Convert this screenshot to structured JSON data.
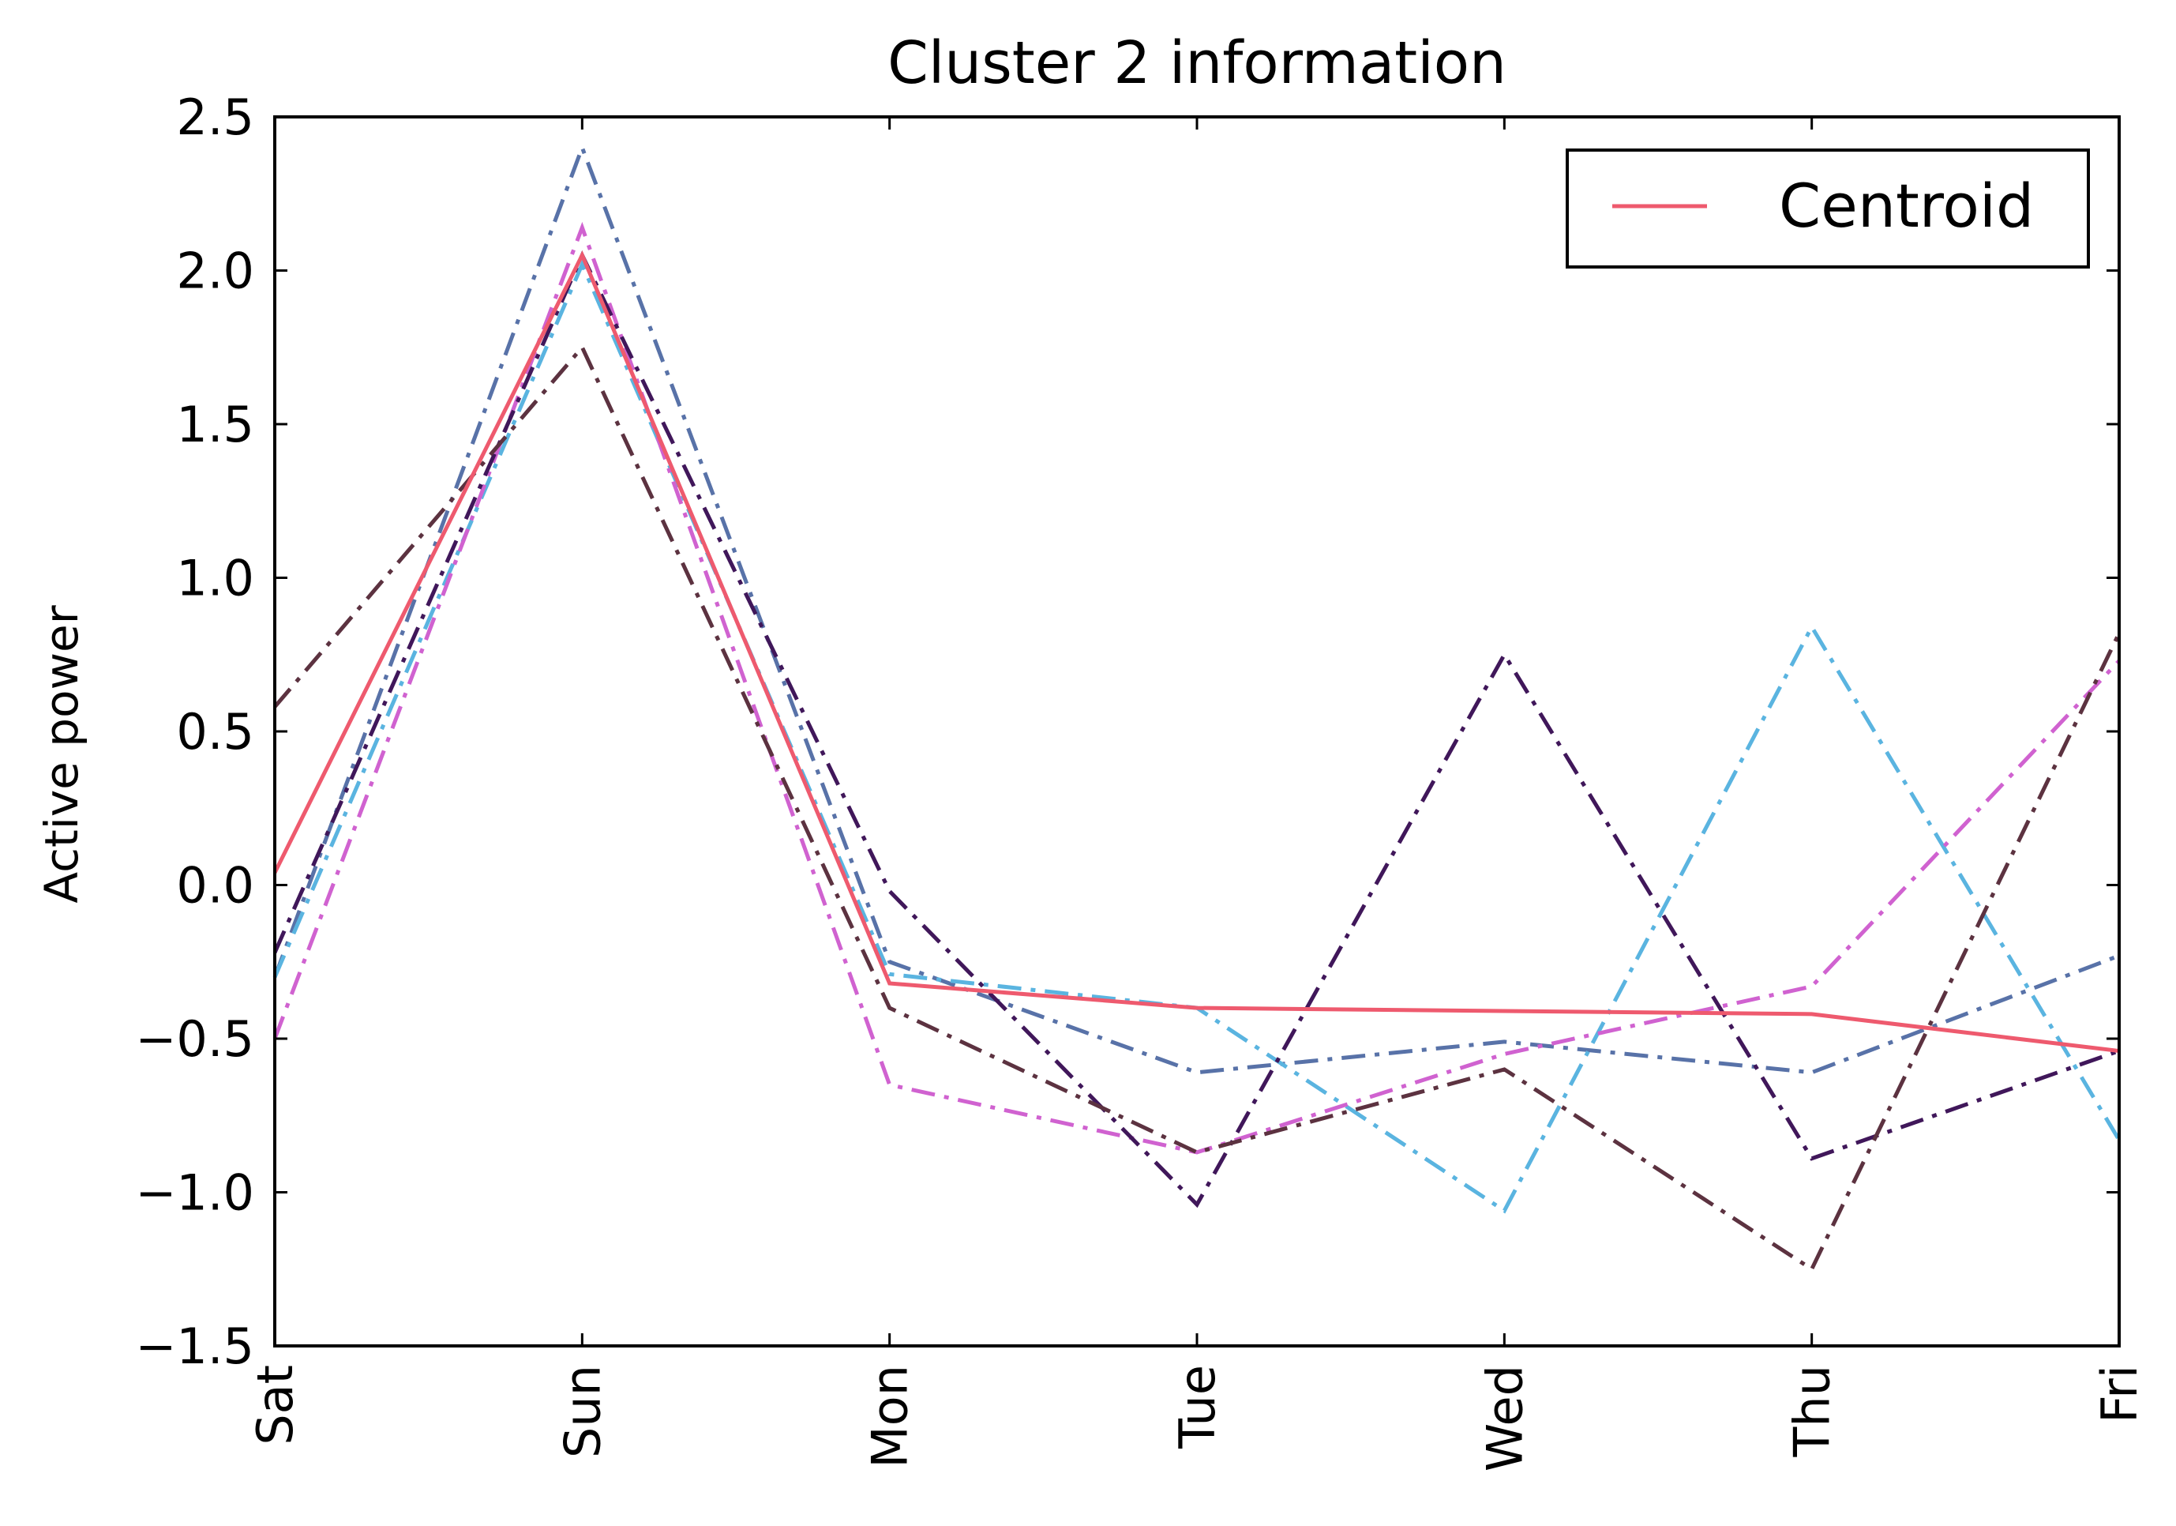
{
  "chart_data": {
    "type": "line",
    "title": "Cluster 2 information",
    "xlabel": "",
    "ylabel": "Active power",
    "categories": [
      "Sat",
      "Sun",
      "Mon",
      "Tue",
      "Wed",
      "Thu",
      "Fri"
    ],
    "ylim": [
      -1.5,
      2.5
    ],
    "yticks": [
      2.5,
      2.0,
      1.5,
      1.0,
      0.5,
      0.0,
      -0.5,
      -1.0,
      -1.5
    ],
    "ytick_labels": [
      "2.5",
      "2.0",
      "1.5",
      "1.0",
      "0.5",
      "0.0",
      "−0.5",
      "−1.0",
      "−1.5"
    ],
    "grid": false,
    "legend_position": "top-right",
    "series": [
      {
        "name": "Centroid",
        "values": [
          0.04,
          2.05,
          -0.32,
          -0.4,
          -0.41,
          -0.42,
          -0.54
        ],
        "color": "#ee5a6e",
        "style": "solid",
        "in_legend": true
      },
      {
        "values": [
          -0.3,
          2.4,
          -0.25,
          -0.61,
          -0.51,
          -0.61,
          -0.23
        ],
        "color": "#5872a8",
        "style": "dashdot",
        "in_legend": false
      },
      {
        "values": [
          -0.3,
          2.02,
          -0.29,
          -0.4,
          -1.06,
          0.84,
          -0.83
        ],
        "color": "#5ab4e0",
        "style": "dashdot",
        "in_legend": false
      },
      {
        "values": [
          -0.5,
          2.14,
          -0.65,
          -0.87,
          -0.55,
          -0.33,
          0.73
        ],
        "color": "#d062d0",
        "style": "dashdot",
        "in_legend": false
      },
      {
        "values": [
          -0.22,
          2.05,
          -0.02,
          -1.04,
          0.75,
          -0.89,
          -0.54
        ],
        "color": "#40175a",
        "style": "dashdot",
        "in_legend": false
      },
      {
        "values": [
          0.58,
          1.75,
          -0.4,
          -0.87,
          -0.6,
          -1.25,
          0.82
        ],
        "color": "#5c3240",
        "style": "dashdot",
        "in_legend": false
      }
    ]
  }
}
